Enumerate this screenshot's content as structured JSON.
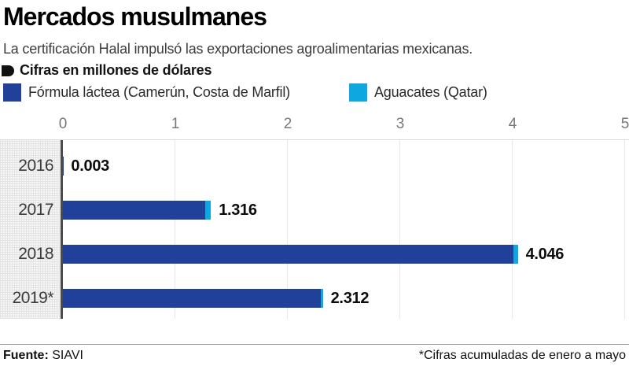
{
  "header": {
    "title": "Mercados musulmanes",
    "subtitle": "La certificación Halal impulsó las exportaciones agroalimentarias mexicanas.",
    "units_label": "Cifras en millones de dólares"
  },
  "chart_data": {
    "type": "bar",
    "orientation": "horizontal",
    "stacked": true,
    "title": "Mercados musulmanes",
    "xlabel": "",
    "ylabel": "",
    "categories": [
      "2016",
      "2017",
      "2018",
      "2019*"
    ],
    "series": [
      {
        "name": "Fórmula láctea (Camerún, Costa de Marfil)",
        "color": "#21409A",
        "values": [
          0.003,
          1.266,
          4.006,
          2.297
        ]
      },
      {
        "name": "Aguacates (Qatar)",
        "color": "#0FA7E0",
        "values": [
          0,
          0.05,
          0.04,
          0.015
        ]
      }
    ],
    "totals": [
      0.003,
      1.316,
      4.046,
      2.312
    ],
    "value_labels": [
      "0.003",
      "1.316",
      "4.046",
      "2.312"
    ],
    "xlim": [
      0,
      5
    ],
    "x_ticks": [
      "0",
      "1",
      "2",
      "3",
      "4",
      "5"
    ],
    "grid": true,
    "legend_position": "top"
  },
  "footer": {
    "source_label": "Fuente:",
    "source_value": "SIAVI",
    "footnote": "*Cifras acumuladas de enero a mayo"
  },
  "colors": {
    "formula_lactea": "#21409A",
    "aguacates": "#0FA7E0",
    "axis_line": "#4B4B4B",
    "gridline": "#E6E6E6",
    "bullet": "#111111"
  }
}
